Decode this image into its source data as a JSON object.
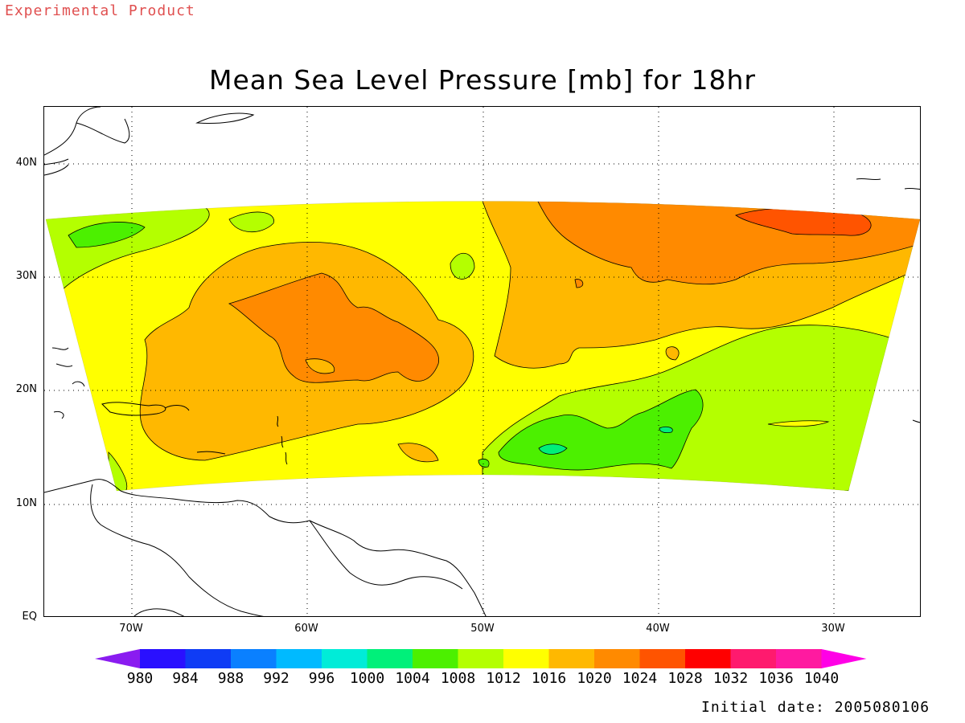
{
  "header": {
    "tag": "Experimental Product"
  },
  "map": {
    "title": "Mean Sea Level Pressure [mb] for 18hr",
    "lat_ticks": [
      "40N",
      "30N",
      "20N",
      "10N",
      "EQ"
    ],
    "lon_ticks": [
      "70W",
      "60W",
      "50W",
      "40W",
      "30W"
    ],
    "initial_date": "Initial date: 2005080106"
  },
  "colorbar": {
    "levels": [
      "980",
      "984",
      "988",
      "992",
      "996",
      "1000",
      "1004",
      "1008",
      "1012",
      "1016",
      "1020",
      "1024",
      "1028",
      "1032",
      "1036",
      "1040"
    ],
    "colors": [
      "#8a1cf0",
      "#2a10ff",
      "#0f3cf5",
      "#0a80ff",
      "#00baff",
      "#00ecd8",
      "#00f07a",
      "#4cf000",
      "#b4ff00",
      "#ffff00",
      "#ffb800",
      "#ff8a00",
      "#ff5400",
      "#ff0000",
      "#ff1a6e",
      "#ff1aa0",
      "#ff00e6"
    ]
  }
}
